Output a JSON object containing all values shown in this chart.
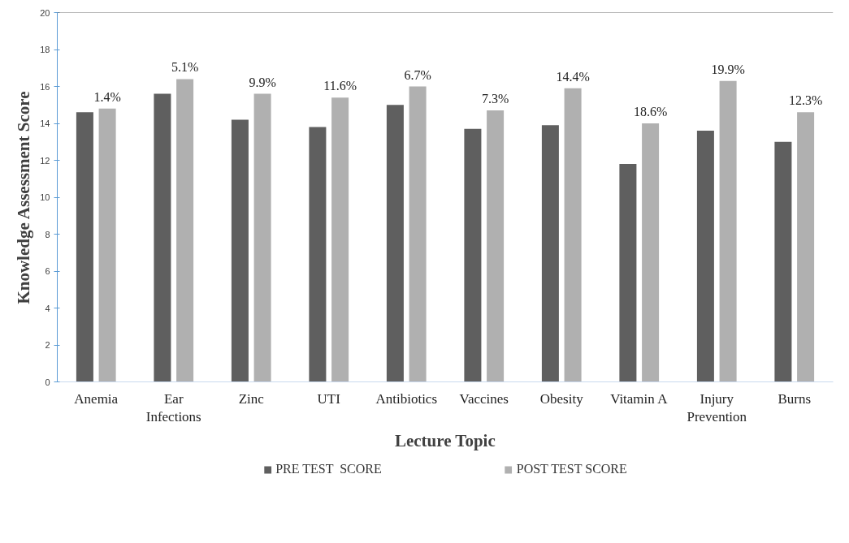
{
  "chart_data": {
    "type": "bar",
    "xlabel": "Lecture Topic",
    "ylabel": "Knowledge Assessment Score",
    "categories": [
      "Anemia",
      "Ear\nInfections",
      "Zinc",
      "UTI",
      "Antibiotics",
      "Vaccines",
      "Obesity",
      "Vitamin A",
      "Injury\nPrevention",
      "Burns"
    ],
    "series": [
      {
        "name": "PRE TEST  SCORE",
        "color": "#5f5f5f",
        "values": [
          14.6,
          15.6,
          14.2,
          13.8,
          15.0,
          13.7,
          13.9,
          11.8,
          13.6,
          13.0
        ]
      },
      {
        "name": "POST TEST SCORE",
        "color": "#b0b0b0",
        "values": [
          14.8,
          16.4,
          15.6,
          15.4,
          16.0,
          14.7,
          15.9,
          14.0,
          16.3,
          14.6
        ]
      }
    ],
    "annotations": [
      {
        "text": "1.4%",
        "x": "Anemia",
        "y": 14.8
      },
      {
        "text": "5.1%",
        "x": "Ear\nInfections",
        "y": 16.4
      },
      {
        "text": "9.9%",
        "x": "Zinc",
        "y": 15.6
      },
      {
        "text": "11.6%",
        "x": "UTI",
        "y": 15.4
      },
      {
        "text": "6.7%",
        "x": "Antibiotics",
        "y": 16.0
      },
      {
        "text": "7.3%",
        "x": "Vaccines",
        "y": 14.7
      },
      {
        "text": "14.4%",
        "x": "Obesity",
        "y": 15.9
      },
      {
        "text": "18.6%",
        "x": "Vitamin A",
        "y": 14.0
      },
      {
        "text": "19.9%",
        "x": "Injury\nPrevention",
        "y": 16.3
      },
      {
        "text": "12.3%",
        "x": "Burns",
        "y": 14.6
      }
    ],
    "ylim": [
      0,
      20
    ],
    "yticks": [
      0,
      2,
      4,
      6,
      8,
      10,
      12,
      14,
      16,
      18,
      20
    ],
    "grid": false,
    "legend": "bottom"
  }
}
